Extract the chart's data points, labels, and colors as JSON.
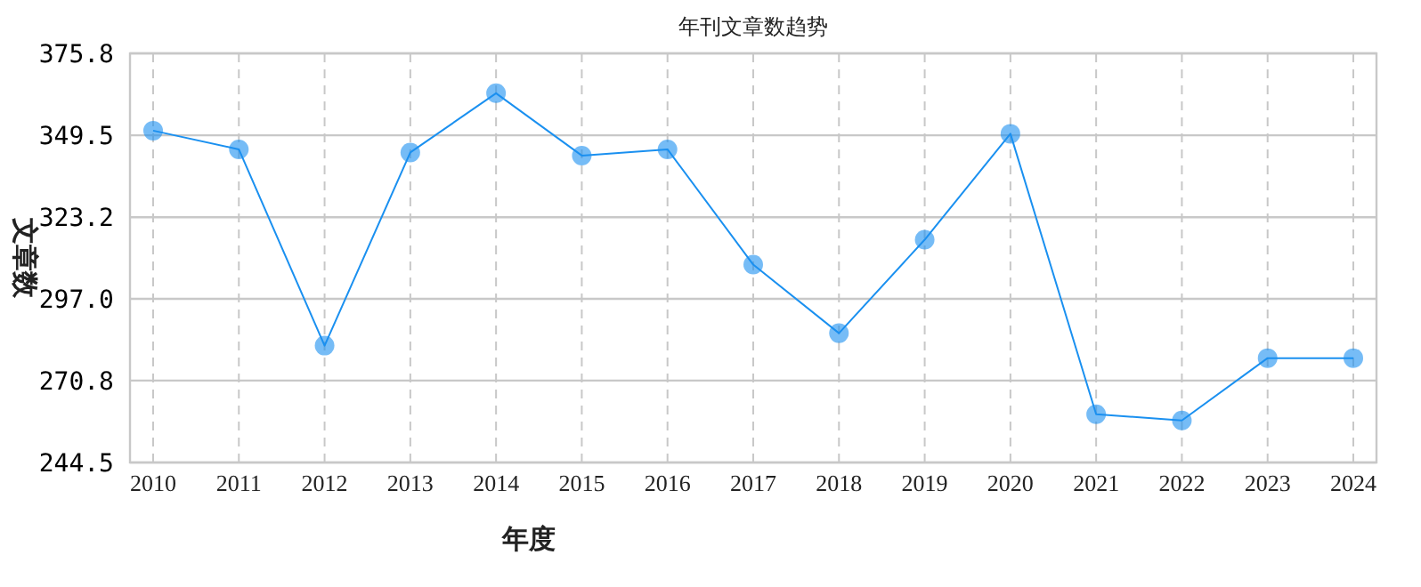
{
  "chart_data": {
    "type": "line",
    "title": "年刊文章数趋势",
    "xlabel": "年度",
    "ylabel": "文章数",
    "categories": [
      "2010",
      "2011",
      "2012",
      "2013",
      "2014",
      "2015",
      "2016",
      "2017",
      "2018",
      "2019",
      "2020",
      "2021",
      "2022",
      "2023",
      "2024"
    ],
    "series": [
      {
        "color": "#1a90f0",
        "values": [
          351,
          345,
          282,
          344,
          363,
          343,
          345,
          308,
          286,
          316,
          350,
          260,
          258,
          278,
          278
        ]
      }
    ],
    "ylim": [
      244.5,
      375.8
    ],
    "yticks": [
      {
        "value": 244.5,
        "label": "244.5"
      },
      {
        "value": 270.8,
        "label": "270.8"
      },
      {
        "value": 297.0,
        "label": "297.0"
      },
      {
        "value": 323.2,
        "label": "323.2"
      },
      {
        "value": 349.5,
        "label": "349.5"
      },
      {
        "value": 375.8,
        "label": "375.8"
      }
    ],
    "grid": true,
    "marker": "circle",
    "line_style": "solid"
  }
}
